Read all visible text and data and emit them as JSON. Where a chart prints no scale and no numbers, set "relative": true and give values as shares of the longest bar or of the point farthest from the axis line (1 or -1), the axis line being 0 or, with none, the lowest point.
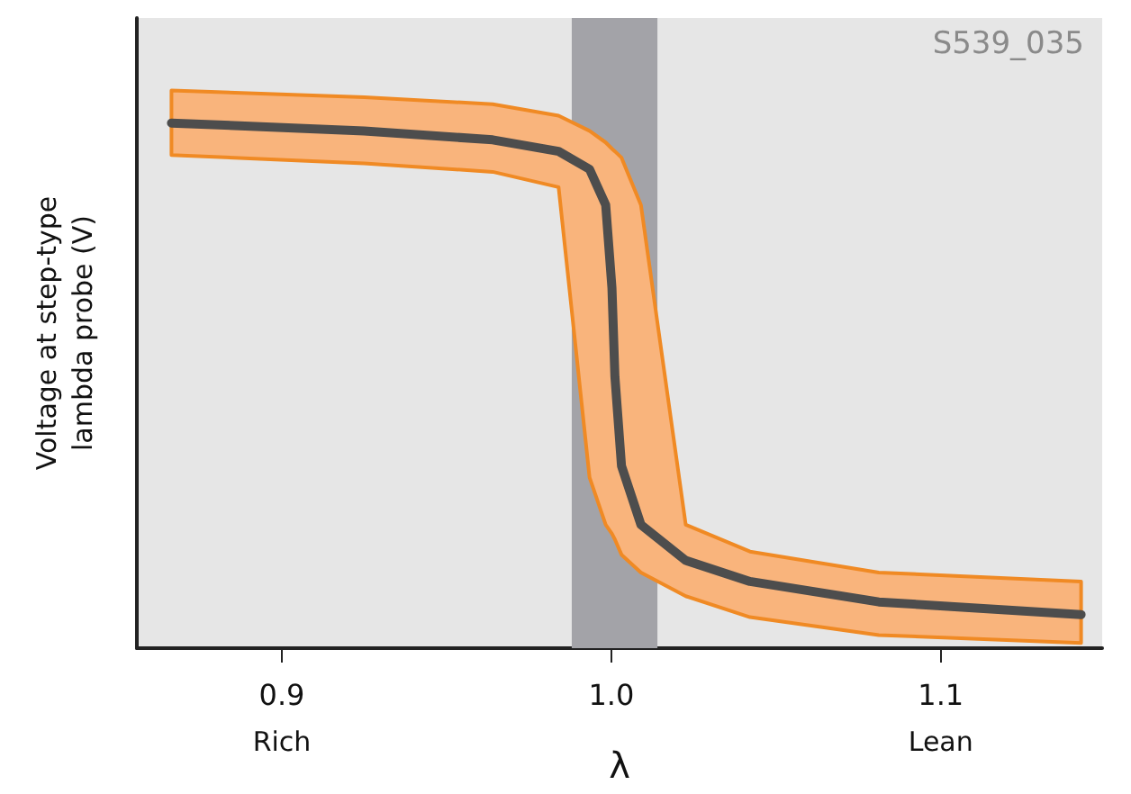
{
  "chart_data": {
    "type": "line",
    "ylabel": "Voltage at step-type\nlambda probe (V)",
    "xlabel": "λ",
    "relative": true,
    "xlim": [
      0.856,
      1.149
    ],
    "xticks": [
      0.9,
      {
        "value": 1,
        "label": "1.0"
      },
      1.1
    ],
    "grid": false,
    "marker": "none",
    "line_style": "solid",
    "series": [
      {
        "color": "#4d4d4d",
        "x": [
          0.8665,
          0.925,
          0.964,
          0.984,
          0.9934,
          0.9983,
          1.0002,
          1.0011,
          1.0031,
          1.009,
          1.0226,
          1.0421,
          1.0812,
          1.1426
        ],
        "values": [
          1,
          0.985,
          0.968,
          0.946,
          0.912,
          0.844,
          0.686,
          0.517,
          0.347,
          0.235,
          0.167,
          0.127,
          0.088,
          0.064
        ],
        "upper": [
          1.062,
          1.049,
          1.036,
          1.014,
          0.985,
          0.963,
          0.951,
          0.946,
          0.934,
          0.844,
          0.235,
          0.184,
          0.144,
          0.127
        ],
        "lower": [
          0.939,
          0.923,
          0.907,
          0.878,
          0.325,
          0.235,
          0.218,
          0.207,
          0.178,
          0.144,
          0.099,
          0.059,
          0.025,
          0.01
        ]
      }
    ],
    "bands": [
      {
        "axis": "x",
        "from": 0.988,
        "to": 1.014,
        "color": "#a3a3a8"
      }
    ],
    "annotations": [
      "S539_035",
      "Rich",
      "Lean"
    ]
  }
}
